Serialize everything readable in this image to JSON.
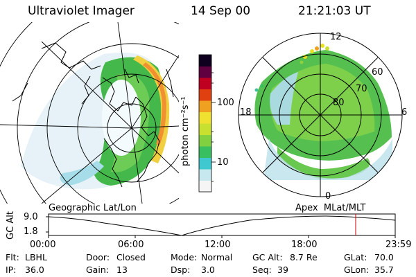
{
  "header": {
    "instrument": "Ultraviolet Imager",
    "date": "14 Sep 00",
    "time": "21:21:03 UT"
  },
  "left_panel": {
    "caption": "Geographic Lat/Lon"
  },
  "right_panel": {
    "caption": "Apex  MLat/MLT",
    "mlt_labels": [
      "12",
      "18",
      "6",
      "0"
    ],
    "lat_labels": [
      "60",
      "70",
      "80"
    ]
  },
  "colorbar": {
    "unit_label": "photon cm⁻²s⁻¹",
    "ticks": [
      "100",
      "10"
    ],
    "scale": "log",
    "colors": [
      "#f5f5f5",
      "#c8e8f0",
      "#40c8d0",
      "#38c060",
      "#80d040",
      "#c8e030",
      "#f0e030",
      "#f0a020",
      "#e04010",
      "#c00020",
      "#600040",
      "#100020"
    ]
  },
  "altitude_plot": {
    "ylabel": "GC Alt",
    "yticks": [
      "9.0",
      "1.8"
    ],
    "xticks": [
      "00:00",
      "06:00",
      "12:00",
      "18:00",
      "23:59"
    ],
    "current_time_marker_color": "#cc0000"
  },
  "info": {
    "flt_label": "Flt:",
    "flt_value": "LBHL",
    "door_label": "Door:",
    "door_value": "Closed",
    "mode_label": "Mode:",
    "mode_value": "Normal",
    "gcalt_label": "GC Alt:",
    "gcalt_value": "8.7 Re",
    "glat_label": "GLat:",
    "glat_value": "70.0",
    "ip_label": "IP:",
    "ip_value": "36.0",
    "gain_label": "Gain:",
    "gain_value": "13",
    "dsp_label": "Dsp:",
    "dsp_value": "3.0",
    "seq_label": "Seq:",
    "seq_value": "39",
    "glon_label": "GLon:",
    "glon_value": "35.7"
  }
}
